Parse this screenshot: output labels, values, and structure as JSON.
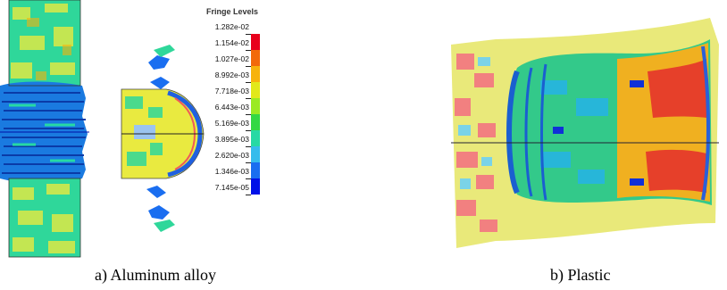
{
  "panels": [
    {
      "caption": "a) Aluminum alloy"
    },
    {
      "caption": "b) Plastic"
    }
  ],
  "legend": {
    "title": "Fringe Levels",
    "levels": [
      "1.282e-02",
      "1.154e-02",
      "1.027e-02",
      "8.992e-03",
      "7.718e-03",
      "6.443e-03",
      "5.169e-03",
      "3.895e-03",
      "2.620e-03",
      "1.346e-03",
      "7.145e-05"
    ],
    "colors": [
      "#e8001c",
      "#f26a0a",
      "#f7b30c",
      "#e2e81a",
      "#9bea22",
      "#33d843",
      "#27d9a4",
      "#35bcec",
      "#1a6ef0",
      "#0010e8"
    ]
  }
}
